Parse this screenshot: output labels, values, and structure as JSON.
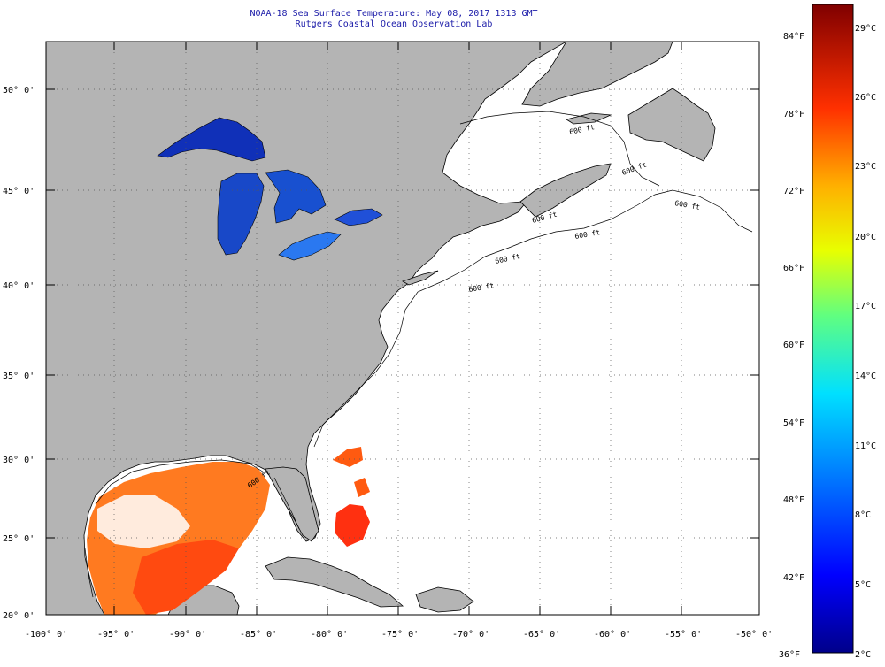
{
  "header": {
    "title_line1": "NOAA-18 Sea Surface Temperature:  May 08, 2017 1313 GMT",
    "title_line2": "Rutgers Coastal Ocean Observation Lab"
  },
  "map": {
    "lat_labels": [
      "50° 0'",
      "45° 0'",
      "40° 0'",
      "35° 0'",
      "30° 0'",
      "25° 0'",
      "20° 0'"
    ],
    "lon_labels": [
      "-100° 0'",
      "-95° 0'",
      "-90° 0'",
      "-85° 0'",
      "-80° 0'",
      "-75° 0'",
      "-70° 0'",
      "-65° 0'",
      "-60° 0'",
      "-55° 0'",
      "-50° 0'"
    ],
    "contour_labels": [
      "600 ft",
      "600 ft",
      "600 ft",
      "600 ft",
      "600 ft",
      "600 ft",
      "600 ft",
      "600 ft"
    ],
    "colors": {
      "land": "#b4b4b4",
      "ocean_nodata": "#ffffff",
      "lakes": "#1a3cc8",
      "gulf_warm": "#ff6a1a"
    }
  },
  "colorbar": {
    "fahrenheit_labels": [
      "84°F",
      "78°F",
      "72°F",
      "66°F",
      "60°F",
      "54°F",
      "48°F",
      "42°F",
      "36°F"
    ],
    "celsius_labels": [
      "29°C",
      "26°C",
      "23°C",
      "20°C",
      "17°C",
      "14°C",
      "11°C",
      "8°C",
      "5°C",
      "2°C"
    ]
  }
}
